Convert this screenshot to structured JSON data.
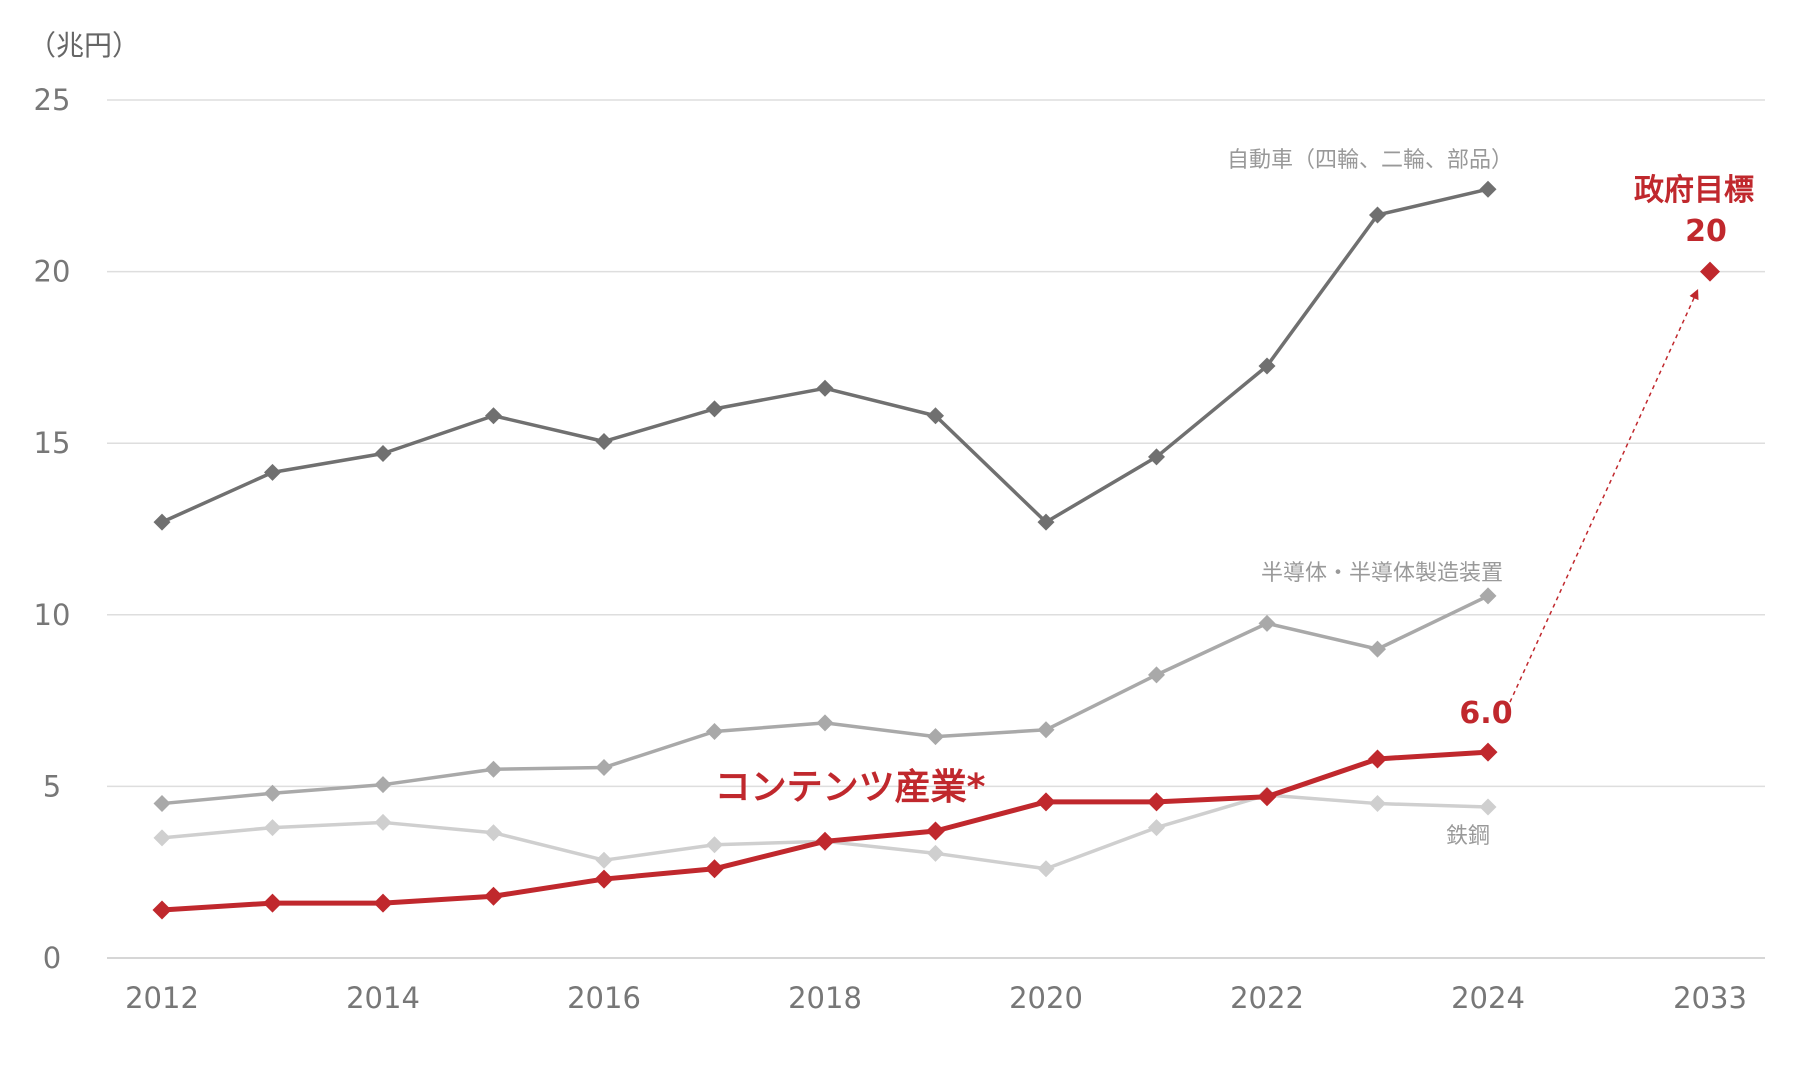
{
  "chart_data": {
    "type": "line",
    "unit_label": "（兆円）",
    "ylim": [
      0,
      25
    ],
    "yticks": [
      0,
      5,
      10,
      15,
      20,
      25
    ],
    "x_tick_labels": [
      "2012",
      "2014",
      "2016",
      "2018",
      "2020",
      "2022",
      "2024",
      "2033"
    ],
    "x_slots": [
      "2012",
      "2013",
      "2014",
      "2015",
      "2016",
      "2017",
      "2018",
      "2019",
      "2020",
      "2021",
      "2022",
      "2023",
      "2024",
      "2033"
    ],
    "grid": true,
    "series": [
      {
        "name": "自動車（四輪、二輪、部品）",
        "color": "#707070",
        "values": [
          12.7,
          14.15,
          14.7,
          15.8,
          15.05,
          16.0,
          16.6,
          15.8,
          12.7,
          14.6,
          17.25,
          21.65,
          22.4
        ]
      },
      {
        "name": "半導体・半導体製造装置",
        "color": "#a9a9a9",
        "values": [
          4.5,
          4.8,
          5.05,
          5.5,
          5.55,
          6.6,
          6.85,
          6.45,
          6.65,
          8.25,
          9.75,
          9.0,
          10.55
        ]
      },
      {
        "name": "鉄鋼",
        "color": "#cfcfcf",
        "values": [
          3.5,
          3.8,
          3.95,
          3.65,
          2.85,
          3.3,
          3.4,
          3.05,
          2.6,
          3.8,
          4.75,
          4.5,
          4.4
        ]
      },
      {
        "name": "コンテンツ産業*",
        "color": "#c0282d",
        "values": [
          1.4,
          1.6,
          1.6,
          1.8,
          2.3,
          2.6,
          3.4,
          3.7,
          4.55,
          4.55,
          4.7,
          5.8,
          6.0
        ]
      }
    ],
    "annotations": {
      "last_value_label": "6.0",
      "target_title": "政府目標",
      "target_value_label": "20",
      "target_year": "2033",
      "target_value": 20
    }
  }
}
